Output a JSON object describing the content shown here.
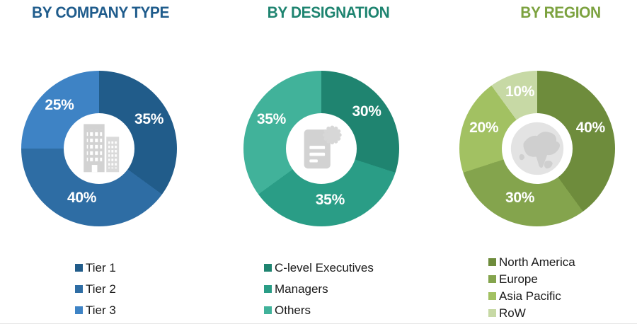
{
  "page": {
    "background": "#ffffff"
  },
  "chart_data": [
    {
      "type": "pie",
      "subtype": "donut",
      "title": "BY COMPANY TYPE",
      "title_color": "#1F5C8C",
      "start_angle_deg": 0,
      "direction": "clockwise",
      "donut_hole_ratio": 0.45,
      "slice_label_color": "#ffffff",
      "center_icon": "office-buildings-icon",
      "legend_position": "bottom",
      "series": [
        {
          "name": "Tier 1",
          "value": 35,
          "label": "35%",
          "color": "#215C8A"
        },
        {
          "name": "Tier 2",
          "value": 40,
          "label": "40%",
          "color": "#2E6DA4"
        },
        {
          "name": "Tier 3",
          "value": 25,
          "label": "25%",
          "color": "#3E83C5"
        }
      ]
    },
    {
      "type": "pie",
      "subtype": "donut",
      "title": "BY DESIGNATION",
      "title_color": "#1E8470",
      "start_angle_deg": 0,
      "direction": "clockwise",
      "donut_hole_ratio": 0.45,
      "slice_label_color": "#ffffff",
      "center_icon": "certificate-document-icon",
      "legend_position": "bottom",
      "series": [
        {
          "name": "C-level Executives",
          "value": 30,
          "label": "30%",
          "color": "#1F8470"
        },
        {
          "name": "Managers",
          "value": 35,
          "label": "35%",
          "color": "#2A9D86"
        },
        {
          "name": "Others",
          "value": 35,
          "label": "35%",
          "color": "#41B29A"
        }
      ]
    },
    {
      "type": "pie",
      "subtype": "donut",
      "title": "BY REGION",
      "title_color": "#7CA23F",
      "start_angle_deg": 0,
      "direction": "clockwise",
      "donut_hole_ratio": 0.45,
      "slice_label_color": "#ffffff",
      "center_icon": "globe-icon",
      "legend_position": "bottom",
      "series": [
        {
          "name": "North America",
          "value": 40,
          "label": "40%",
          "color": "#6E8C3C"
        },
        {
          "name": "Europe",
          "value": 30,
          "label": "30%",
          "color": "#84A44D"
        },
        {
          "name": "Asia Pacific",
          "value": 20,
          "label": "20%",
          "color": "#A2C162"
        },
        {
          "name": "RoW",
          "value": 10,
          "label": "10%",
          "color": "#C7D9A5"
        }
      ]
    }
  ]
}
